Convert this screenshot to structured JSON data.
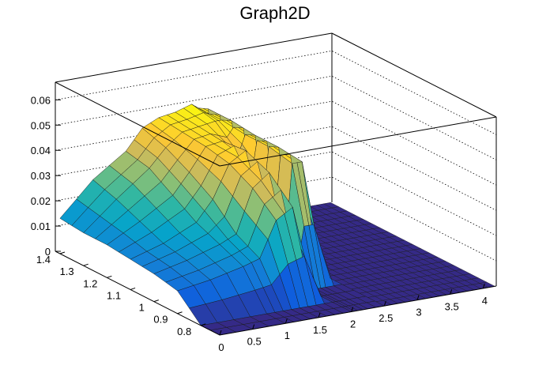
{
  "chart_data": {
    "type": "surface",
    "title": "Graph2D",
    "xlabel": "",
    "ylabel": "",
    "zlabel": "",
    "x_ticks": [
      "0",
      "0.5",
      "1",
      "1.5",
      "2",
      "2.5",
      "3",
      "3.5",
      "4"
    ],
    "y_ticks": [
      "0.8",
      "0.9",
      "1",
      "1.1",
      "1.2",
      "1.3",
      "1.4"
    ],
    "z_ticks": [
      "0",
      "0.01",
      "0.02",
      "0.03",
      "0.04",
      "0.05",
      "0.06"
    ],
    "xlim": [
      0,
      4.2
    ],
    "ylim": [
      0.72,
      1.42
    ],
    "zlim": [
      0,
      0.067
    ],
    "grid": true,
    "colormap": [
      "#352a87",
      "#0f5cdd",
      "#1481d6",
      "#06a4ca",
      "#2eb7a4",
      "#87bf77",
      "#d1bb59",
      "#fec832",
      "#f9fb0e"
    ],
    "surface_x": [
      0,
      0.5,
      1,
      1.25,
      1.5,
      1.75,
      2,
      2.1,
      2.25,
      2.5
    ],
    "surface_y": [
      0.72,
      0.8,
      0.9,
      1,
      1.1,
      1.2,
      1.3,
      1.4
    ],
    "surface_z": [
      [
        0.0,
        0.0,
        0.0,
        0.0,
        0.0,
        0.0,
        0.0,
        0.0,
        0.0,
        0.0
      ],
      [
        0.0,
        0.0,
        0.0,
        0.0,
        0.0,
        0.0,
        0.0,
        0.0,
        0.0,
        0.0
      ],
      [
        0.009,
        0.011,
        0.014,
        0.016,
        0.03,
        0.034,
        0.0,
        0.0,
        0.0,
        0.0
      ],
      [
        0.011,
        0.014,
        0.018,
        0.021,
        0.038,
        0.043,
        0.014,
        0.045,
        0.045,
        0.0
      ],
      [
        0.012,
        0.016,
        0.022,
        0.03,
        0.043,
        0.047,
        0.022,
        0.047,
        0.046,
        0.0
      ],
      [
        0.013,
        0.02,
        0.028,
        0.036,
        0.045,
        0.046,
        0.04,
        0.047,
        0.046,
        0.0
      ],
      [
        0.013,
        0.024,
        0.034,
        0.041,
        0.046,
        0.047,
        0.048,
        0.048,
        0.047,
        0.0
      ],
      [
        0.014,
        0.027,
        0.036,
        0.044,
        0.047,
        0.048,
        0.05,
        0.048,
        0.047,
        0.0
      ]
    ]
  }
}
